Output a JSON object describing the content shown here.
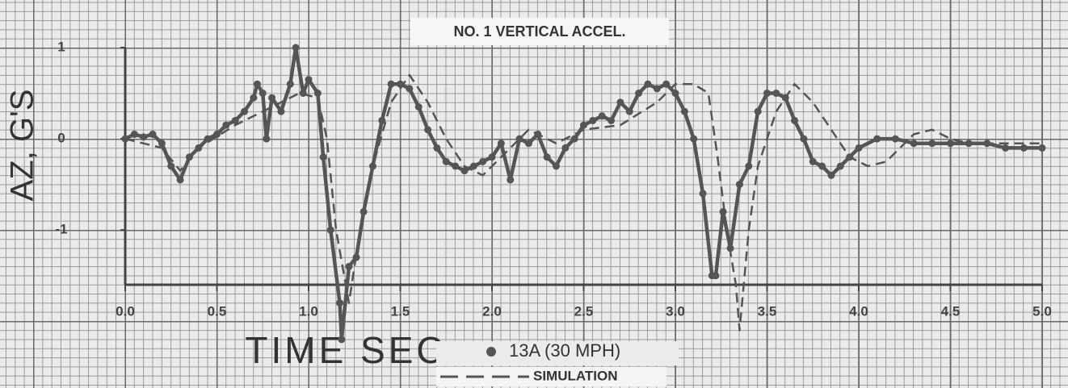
{
  "chart_data": {
    "type": "line",
    "title": "NO. 1 VERTICAL ACCEL.",
    "x_label": "TIME SEC",
    "y_label": "AZ, G'S",
    "xlim": [
      0,
      5
    ],
    "ylim": [
      -1.6,
      1.0
    ],
    "xticks": [
      {
        "value": 0,
        "label": "0.0"
      },
      {
        "value": 0.5,
        "label": "0.5"
      },
      {
        "value": 1,
        "label": "1.0"
      },
      {
        "value": 1.5,
        "label": "1.5"
      },
      {
        "value": 2,
        "label": "2.0"
      },
      {
        "value": 2.5,
        "label": "2.5"
      },
      {
        "value": 3,
        "label": "3.0"
      },
      {
        "value": 3.5,
        "label": "3.5"
      },
      {
        "value": 4,
        "label": "4.0"
      },
      {
        "value": 4.5,
        "label": "4.5"
      },
      {
        "value": 5,
        "label": "5.0"
      }
    ],
    "yticks": [
      1,
      0,
      -1
    ],
    "series": [
      {
        "name": "13A (30 MPH)",
        "color": "#555555",
        "style": "solid-dots",
        "x": [
          0,
          0.05,
          0.1,
          0.15,
          0.2,
          0.25,
          0.3,
          0.35,
          0.4,
          0.45,
          0.5,
          0.55,
          0.6,
          0.65,
          0.7,
          0.72,
          0.75,
          0.77,
          0.8,
          0.85,
          0.9,
          0.93,
          0.97,
          1.0,
          1.05,
          1.08,
          1.12,
          1.17,
          1.18,
          1.22,
          1.26,
          1.3,
          1.35,
          1.4,
          1.45,
          1.5,
          1.55,
          1.6,
          1.65,
          1.7,
          1.75,
          1.8,
          1.85,
          1.9,
          1.95,
          2.0,
          2.05,
          2.1,
          2.15,
          2.2,
          2.25,
          2.3,
          2.35,
          2.4,
          2.45,
          2.5,
          2.55,
          2.6,
          2.65,
          2.7,
          2.75,
          2.8,
          2.85,
          2.9,
          2.95,
          3.0,
          3.05,
          3.1,
          3.15,
          3.2,
          3.22,
          3.26,
          3.3,
          3.35,
          3.4,
          3.45,
          3.5,
          3.55,
          3.6,
          3.65,
          3.7,
          3.75,
          3.8,
          3.85,
          3.9,
          3.95,
          4.0,
          4.1,
          4.2,
          4.3,
          4.4,
          4.5,
          4.6,
          4.7,
          4.8,
          4.9,
          5.0
        ],
        "values": [
          0.0,
          0.05,
          0.02,
          0.05,
          -0.05,
          -0.3,
          -0.45,
          -0.2,
          -0.1,
          0.0,
          0.05,
          0.15,
          0.2,
          0.3,
          0.45,
          0.6,
          0.5,
          0.0,
          0.45,
          0.3,
          0.6,
          1.0,
          0.5,
          0.65,
          0.5,
          -0.2,
          -1.0,
          -1.8,
          -2.2,
          -1.4,
          -1.3,
          -0.8,
          -0.3,
          0.2,
          0.6,
          0.6,
          0.55,
          0.35,
          0.1,
          -0.1,
          -0.25,
          -0.3,
          -0.35,
          -0.3,
          -0.25,
          -0.2,
          -0.05,
          -0.45,
          0.0,
          -0.05,
          0.05,
          -0.2,
          -0.3,
          -0.1,
          0.0,
          0.15,
          0.2,
          0.25,
          0.2,
          0.4,
          0.3,
          0.5,
          0.6,
          0.55,
          0.6,
          0.5,
          0.3,
          0.0,
          -0.6,
          -1.5,
          -1.5,
          -0.8,
          -1.2,
          -0.5,
          -0.3,
          0.3,
          0.5,
          0.5,
          0.45,
          0.2,
          0.0,
          -0.25,
          -0.3,
          -0.4,
          -0.3,
          -0.2,
          -0.1,
          0.0,
          0.0,
          -0.05,
          -0.05,
          -0.05,
          -0.05,
          -0.05,
          -0.1,
          -0.1,
          -0.1
        ]
      },
      {
        "name": "SIMULATION",
        "color": "#555555",
        "style": "dashed",
        "x": [
          0,
          0.2,
          0.3,
          0.4,
          0.6,
          0.8,
          0.95,
          1.05,
          1.1,
          1.15,
          1.22,
          1.28,
          1.35,
          1.45,
          1.55,
          1.65,
          1.75,
          1.85,
          1.95,
          2.05,
          2.2,
          2.35,
          2.5,
          2.7,
          2.9,
          3.0,
          3.1,
          3.18,
          3.23,
          3.28,
          3.33,
          3.35,
          3.4,
          3.45,
          3.55,
          3.65,
          3.75,
          3.85,
          3.95,
          4.05,
          4.15,
          4.3,
          4.4,
          4.5,
          4.6,
          5.0
        ],
        "values": [
          0.0,
          -0.1,
          -0.35,
          -0.1,
          0.15,
          0.35,
          0.5,
          0.45,
          0.0,
          -1.0,
          -1.8,
          -1.0,
          -0.3,
          0.4,
          0.7,
          0.4,
          0.0,
          -0.3,
          -0.4,
          -0.2,
          0.1,
          -0.05,
          0.1,
          0.15,
          0.4,
          0.6,
          0.6,
          0.5,
          -0.2,
          -1.0,
          -1.6,
          -2.1,
          -1.0,
          -0.3,
          0.3,
          0.6,
          0.4,
          0.1,
          -0.2,
          -0.3,
          -0.25,
          0.05,
          0.1,
          0.0,
          -0.05,
          -0.05
        ]
      }
    ]
  }
}
